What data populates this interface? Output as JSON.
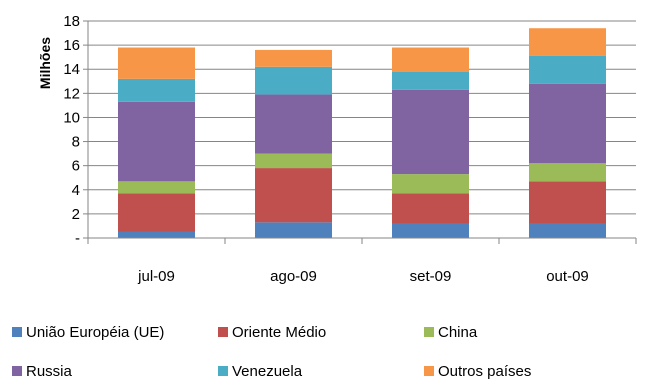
{
  "chart_data": {
    "type": "bar",
    "stacked": true,
    "categories": [
      "jul-09",
      "ago-09",
      "set-09",
      "out-09"
    ],
    "series": [
      {
        "name": "União Européia (UE)",
        "color": "#4f81bd",
        "values": [
          0.5,
          1.3,
          1.2,
          1.2
        ]
      },
      {
        "name": "Oriente Médio",
        "color": "#c0504d",
        "values": [
          3.2,
          4.5,
          2.5,
          3.5
        ]
      },
      {
        "name": "China",
        "color": "#9bbb59",
        "values": [
          1.0,
          1.2,
          1.6,
          1.5
        ]
      },
      {
        "name": "Russia",
        "color": "#8064a2",
        "values": [
          6.6,
          4.9,
          7.0,
          6.6
        ]
      },
      {
        "name": "Venezuela",
        "color": "#4bacc6",
        "values": [
          1.9,
          2.3,
          1.5,
          2.3
        ]
      },
      {
        "name": "Outros países",
        "color": "#f79646",
        "values": [
          2.6,
          1.4,
          2.0,
          2.3
        ]
      }
    ],
    "ylabel": "Milhões",
    "ylim": [
      0,
      18
    ],
    "yticks": [
      0,
      2,
      4,
      6,
      8,
      10,
      12,
      14,
      16,
      18
    ],
    "ytick_labels": [
      "-",
      "2",
      "4",
      "6",
      "8",
      "10",
      "12",
      "14",
      "16",
      "18"
    ],
    "grid": true,
    "legend_position": "bottom"
  }
}
